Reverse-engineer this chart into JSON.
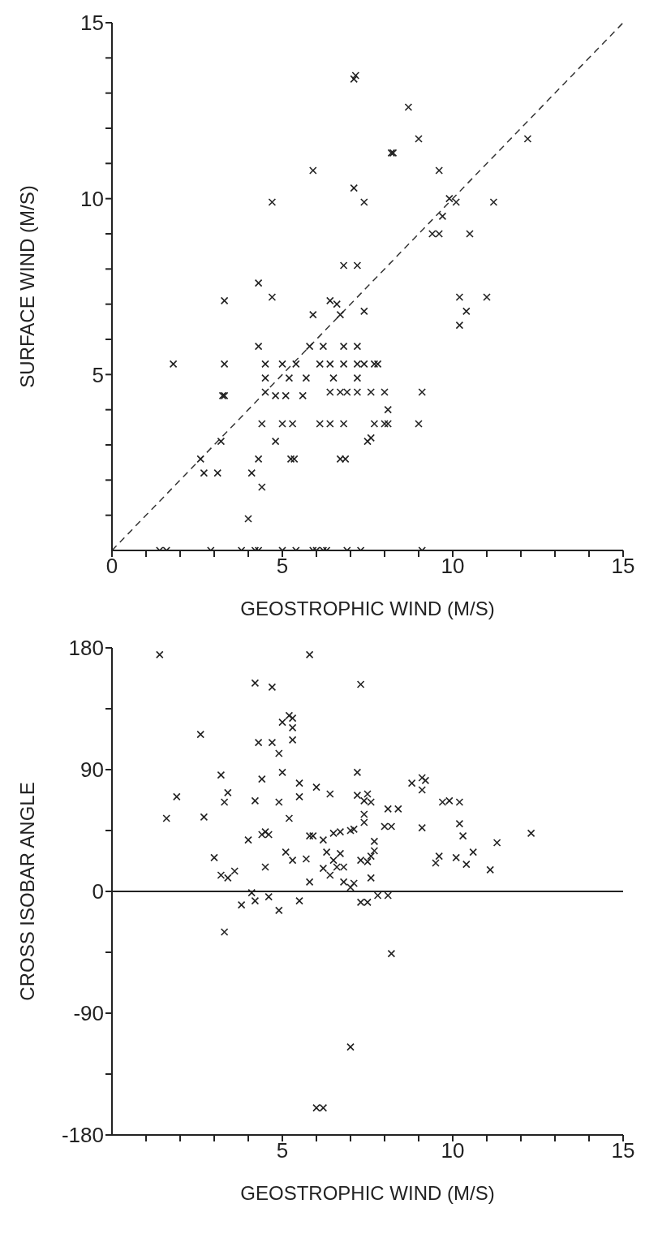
{
  "chart_data": [
    {
      "type": "scatter",
      "xlabel": "GEOSTROPHIC WIND (M/S)",
      "ylabel": "SURFACE WIND (M/S)",
      "marker": "cross",
      "xlim": [
        0,
        15
      ],
      "xticks": [
        0,
        {
          "value": 1,
          "label": null
        },
        {
          "value": 2,
          "label": null
        },
        {
          "value": 3,
          "label": null
        },
        {
          "value": 4,
          "label": null
        },
        5,
        {
          "value": 6,
          "label": null
        },
        {
          "value": 7,
          "label": null
        },
        {
          "value": 8,
          "label": null
        },
        {
          "value": 9,
          "label": null
        },
        10,
        {
          "value": 11,
          "label": null
        },
        {
          "value": 12,
          "label": null
        },
        {
          "value": 13,
          "label": null
        },
        {
          "value": 14,
          "label": null
        },
        15
      ],
      "ylim": [
        0,
        15
      ],
      "yticks": [
        {
          "value": 1,
          "label": null
        },
        {
          "value": 2,
          "label": null
        },
        {
          "value": 3,
          "label": null
        },
        {
          "value": 4,
          "label": null
        },
        5,
        {
          "value": 6,
          "label": null
        },
        {
          "value": 7,
          "label": null
        },
        {
          "value": 8,
          "label": null
        },
        {
          "value": 9,
          "label": null
        },
        10,
        {
          "value": 11,
          "label": null
        },
        {
          "value": 12,
          "label": null
        },
        {
          "value": 13,
          "label": null
        },
        {
          "value": 14,
          "label": null
        },
        15
      ],
      "series": [
        {
          "color": "#222222",
          "x": [
            1.8,
            2.6,
            2.7,
            3.1,
            3.2,
            3.25,
            3.3,
            3.3,
            3.3,
            4.1,
            4.4,
            4.0,
            4.3,
            4.4,
            4.3,
            4.3,
            4.5,
            4.5,
            4.5,
            4.7,
            4.7,
            4.8,
            4.8,
            5.0,
            5.0,
            5.1,
            5.2,
            5.3,
            5.25,
            5.35,
            5.4,
            5.6,
            5.7,
            5.8,
            5.9,
            5.9,
            6.1,
            6.1,
            6.2,
            6.4,
            6.4,
            6.4,
            6.4,
            6.5,
            6.6,
            6.7,
            6.7,
            6.7,
            6.85,
            6.8,
            6.8,
            6.8,
            6.8,
            6.9,
            7.1,
            7.1,
            7.15,
            7.2,
            7.2,
            7.2,
            7.2,
            7.2,
            7.4,
            7.4,
            7.4,
            7.5,
            7.6,
            7.6,
            7.7,
            7.7,
            7.8,
            8.0,
            8.1,
            8.0,
            8.1,
            8.2,
            8.25,
            8.7,
            9.0,
            9.0,
            9.1,
            9.4,
            9.6,
            9.6,
            9.7,
            9.9,
            10.1,
            10.2,
            10.2,
            10.4,
            10.5,
            11.0,
            11.2,
            12.2,
            1.4,
            1.6,
            2.9,
            3.8,
            4.2,
            4.3,
            5.0,
            5.4,
            5.9,
            6.0,
            6.2,
            6.3,
            6.9,
            7.3,
            9.1
          ],
          "values": [
            5.3,
            2.6,
            2.2,
            2.2,
            3.1,
            4.4,
            4.4,
            5.3,
            7.1,
            2.2,
            1.8,
            0.9,
            2.6,
            3.6,
            5.8,
            7.6,
            4.5,
            5.3,
            4.9,
            7.2,
            9.9,
            4.4,
            3.1,
            3.6,
            5.3,
            4.4,
            4.9,
            3.6,
            2.6,
            2.6,
            5.3,
            4.4,
            4.9,
            5.8,
            6.7,
            10.8,
            3.6,
            5.3,
            5.8,
            5.3,
            7.1,
            3.6,
            4.5,
            4.9,
            7.0,
            6.7,
            4.5,
            2.6,
            2.6,
            5.3,
            5.8,
            3.6,
            8.1,
            4.5,
            10.3,
            13.4,
            13.5,
            4.9,
            5.8,
            4.5,
            5.3,
            8.1,
            9.9,
            5.3,
            6.8,
            3.1,
            3.2,
            4.5,
            5.3,
            3.6,
            5.3,
            4.5,
            4.0,
            3.6,
            3.6,
            11.3,
            11.3,
            12.6,
            11.7,
            3.6,
            4.5,
            9.0,
            9.0,
            10.8,
            9.5,
            10.0,
            9.9,
            6.4,
            7.2,
            6.8,
            9.0,
            7.2,
            9.9,
            11.7,
            0,
            0,
            0,
            0,
            0,
            0,
            0,
            0,
            0,
            0,
            0,
            0,
            0,
            0,
            0
          ]
        },
        {
          "type": "line",
          "color": "#333333",
          "line_style": "dashed",
          "marker": "none",
          "x": [
            0,
            15
          ],
          "values": [
            0,
            15
          ]
        }
      ]
    },
    {
      "type": "scatter",
      "xlabel": "GEOSTROPHIC WIND (M/S)",
      "ylabel": "CROSS ISOBAR ANGLE",
      "marker": "cross",
      "xlim": [
        0,
        15
      ],
      "xticks": [
        {
          "value": 1,
          "label": null
        },
        {
          "value": 2,
          "label": null
        },
        {
          "value": 3,
          "label": null
        },
        {
          "value": 4,
          "label": null
        },
        5,
        {
          "value": 6,
          "label": null
        },
        {
          "value": 7,
          "label": null
        },
        {
          "value": 8,
          "label": null
        },
        {
          "value": 9,
          "label": null
        },
        10,
        {
          "value": 11,
          "label": null
        },
        {
          "value": 12,
          "label": null
        },
        {
          "value": 13,
          "label": null
        },
        {
          "value": 14,
          "label": null
        },
        15
      ],
      "ylim": [
        -180,
        180
      ],
      "yticks": [
        -180,
        {
          "value": -135,
          "label": null
        },
        -90,
        {
          "value": -45,
          "label": null
        },
        0,
        {
          "value": 45,
          "label": null
        },
        90,
        {
          "value": 135,
          "label": null
        },
        180
      ],
      "ref_lines": [
        {
          "axis": "y",
          "value": 0,
          "color": "#222222"
        }
      ],
      "series": [
        {
          "color": "#222222",
          "x": [
            1.4,
            5.8,
            4.2,
            4.7,
            7.3,
            5.0,
            5.2,
            5.3,
            5.3,
            5.3,
            2.6,
            4.3,
            4.7,
            4.9,
            3.2,
            5.0,
            4.4,
            7.2,
            1.9,
            3.4,
            3.3,
            5.5,
            5.5,
            6.0,
            6.4,
            4.2,
            4.9,
            8.8,
            9.1,
            9.1,
            9.2,
            9.7,
            9.9,
            10.2,
            7.2,
            7.5,
            7.6,
            7.4,
            8.1,
            8.4,
            1.6,
            2.7,
            5.2,
            7.4,
            7.4,
            8.0,
            8.2,
            9.1,
            10.2,
            10.3,
            11.3,
            12.3,
            4.0,
            4.4,
            4.5,
            4.6,
            5.8,
            5.9,
            6.2,
            6.5,
            6.7,
            7.0,
            7.1,
            3.0,
            3.2,
            3.4,
            3.6,
            4.5,
            5.1,
            5.3,
            5.7,
            5.8,
            6.2,
            6.3,
            6.5,
            6.7,
            6.6,
            6.8,
            6.4,
            6.8,
            7.0,
            7.1,
            7.3,
            7.5,
            7.6,
            7.7,
            7.7,
            7.6,
            9.5,
            9.6,
            10.1,
            10.4,
            10.6,
            11.1,
            3.8,
            4.1,
            4.2,
            4.6,
            4.9,
            5.5,
            7.3,
            7.5,
            7.8,
            8.1,
            3.3,
            8.2,
            7.0,
            6.0,
            6.2
          ],
          "values": [
            175,
            175,
            154,
            151,
            153,
            125,
            130,
            128,
            121,
            112,
            116,
            110,
            110,
            102,
            86,
            88,
            83,
            88,
            70,
            73,
            66,
            80,
            70,
            77,
            72,
            67,
            66,
            80,
            84,
            75,
            82,
            66,
            67,
            66,
            71,
            72,
            66,
            67,
            61,
            61,
            54,
            55,
            54,
            57,
            51,
            48,
            48,
            47,
            50,
            41,
            36,
            43,
            38,
            42,
            44,
            42,
            41,
            41,
            38,
            43,
            44,
            45,
            46,
            25,
            12,
            10,
            15,
            18,
            29,
            23,
            24,
            7,
            17,
            29,
            23,
            28,
            18,
            18,
            12,
            7,
            3,
            6,
            23,
            22,
            26,
            37,
            30,
            10,
            21,
            26,
            25,
            20,
            29,
            16,
            -10,
            -1,
            -7,
            -4,
            -14,
            -7,
            -8,
            -8,
            -3,
            -3,
            -30,
            -46,
            -115,
            -160,
            -160
          ]
        }
      ]
    }
  ]
}
